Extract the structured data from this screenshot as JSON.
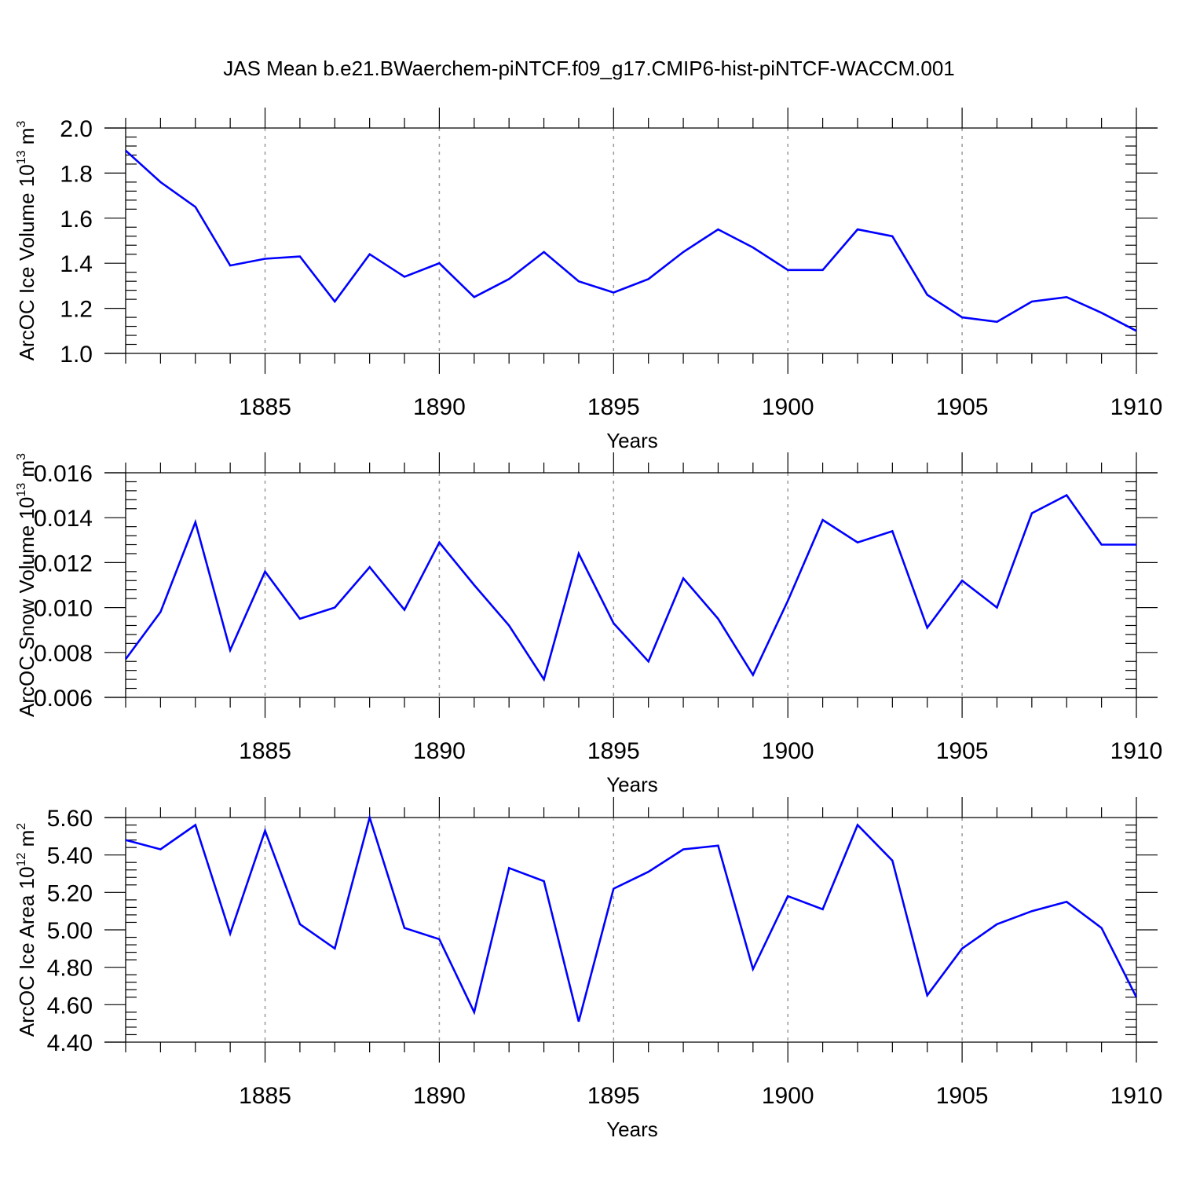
{
  "title": "JAS Mean b.e21.BWaerchem-piNTCF.f09_g17.CMIP6-hist-piNTCF-WACCM.001",
  "colors": {
    "line": "#0000ff",
    "grid": "#999999",
    "axis": "#000000"
  },
  "chart_data": [
    {
      "type": "line",
      "xlabel": "Years",
      "ylabel": "ArcOC Ice Volume 10",
      "ylabel_exp": "13",
      "ylabel_unit": " m",
      "ylabel_unit_exp": "3",
      "xlim": [
        1881,
        1910
      ],
      "ylim": [
        1.0,
        2.0
      ],
      "xticks": [
        1885,
        1890,
        1895,
        1900,
        1905,
        1910
      ],
      "xtick_labels": [
        "1885",
        "1890",
        "1895",
        "1900",
        "1905",
        "1910"
      ],
      "yticks": [
        1.0,
        1.2,
        1.4,
        1.6,
        1.8,
        2.0
      ],
      "ytick_labels": [
        "1.0",
        "1.2",
        "1.4",
        "1.6",
        "1.8",
        "2.0"
      ],
      "grid": "vertical dashed at major x ticks",
      "x": [
        1881,
        1882,
        1883,
        1884,
        1885,
        1886,
        1887,
        1888,
        1889,
        1890,
        1891,
        1892,
        1893,
        1894,
        1895,
        1896,
        1897,
        1898,
        1899,
        1900,
        1901,
        1902,
        1903,
        1904,
        1905,
        1906,
        1907,
        1908,
        1909,
        1910
      ],
      "series": [
        {
          "values": [
            1.9,
            1.76,
            1.65,
            1.39,
            1.42,
            1.43,
            1.23,
            1.44,
            1.34,
            1.4,
            1.25,
            1.33,
            1.45,
            1.32,
            1.27,
            1.33,
            1.45,
            1.55,
            1.47,
            1.37,
            1.37,
            1.55,
            1.52,
            1.26,
            1.16,
            1.14,
            1.23,
            1.25,
            1.18,
            1.1
          ]
        }
      ]
    },
    {
      "type": "line",
      "xlabel": "Years",
      "ylabel": "ArcOC Snow Volume 10",
      "ylabel_exp": "13",
      "ylabel_unit": " m",
      "ylabel_unit_exp": "3",
      "xlim": [
        1881,
        1910
      ],
      "ylim": [
        0.006,
        0.016
      ],
      "xticks": [
        1885,
        1890,
        1895,
        1900,
        1905,
        1910
      ],
      "xtick_labels": [
        "1885",
        "1890",
        "1895",
        "1900",
        "1905",
        "1910"
      ],
      "yticks": [
        0.006,
        0.008,
        0.01,
        0.012,
        0.014,
        0.016
      ],
      "ytick_labels": [
        "0.006",
        "0.008",
        "0.010",
        "0.012",
        "0.014",
        "0.016"
      ],
      "grid": "vertical dashed at major x ticks",
      "x": [
        1881,
        1882,
        1883,
        1884,
        1885,
        1886,
        1887,
        1888,
        1889,
        1890,
        1891,
        1892,
        1893,
        1894,
        1895,
        1896,
        1897,
        1898,
        1899,
        1900,
        1901,
        1902,
        1903,
        1904,
        1905,
        1906,
        1907,
        1908,
        1909,
        1910
      ],
      "series": [
        {
          "values": [
            0.0077,
            0.0098,
            0.0138,
            0.0081,
            0.0116,
            0.0095,
            0.01,
            0.0118,
            0.0099,
            0.0129,
            0.011,
            0.0092,
            0.0068,
            0.0124,
            0.0093,
            0.0076,
            0.0113,
            0.0095,
            0.007,
            0.0103,
            0.0139,
            0.0129,
            0.0134,
            0.0091,
            0.0112,
            0.01,
            0.0142,
            0.015,
            0.0128,
            0.0128
          ]
        }
      ]
    },
    {
      "type": "line",
      "xlabel": "Years",
      "ylabel": "ArcOC Ice Area 10",
      "ylabel_exp": "12",
      "ylabel_unit": " m",
      "ylabel_unit_exp": "2",
      "xlim": [
        1881,
        1910
      ],
      "ylim": [
        4.4,
        5.6
      ],
      "xticks": [
        1885,
        1890,
        1895,
        1900,
        1905,
        1910
      ],
      "xtick_labels": [
        "1885",
        "1890",
        "1895",
        "1900",
        "1905",
        "1910"
      ],
      "yticks": [
        4.4,
        4.6,
        4.8,
        5.0,
        5.2,
        5.4,
        5.6
      ],
      "ytick_labels": [
        "4.40",
        "4.60",
        "4.80",
        "5.00",
        "5.20",
        "5.40",
        "5.60"
      ],
      "grid": "vertical dashed at major x ticks",
      "x": [
        1881,
        1882,
        1883,
        1884,
        1885,
        1886,
        1887,
        1888,
        1889,
        1890,
        1891,
        1892,
        1893,
        1894,
        1895,
        1896,
        1897,
        1898,
        1899,
        1900,
        1901,
        1902,
        1903,
        1904,
        1905,
        1906,
        1907,
        1908,
        1909,
        1910
      ],
      "series": [
        {
          "values": [
            5.48,
            5.43,
            5.56,
            4.98,
            5.53,
            5.03,
            4.9,
            5.6,
            5.01,
            4.95,
            4.56,
            5.33,
            5.26,
            4.51,
            5.22,
            5.31,
            5.43,
            5.45,
            4.79,
            5.18,
            5.11,
            5.56,
            5.37,
            4.65,
            4.9,
            5.03,
            5.1,
            5.15,
            5.01,
            4.64
          ]
        }
      ]
    }
  ]
}
